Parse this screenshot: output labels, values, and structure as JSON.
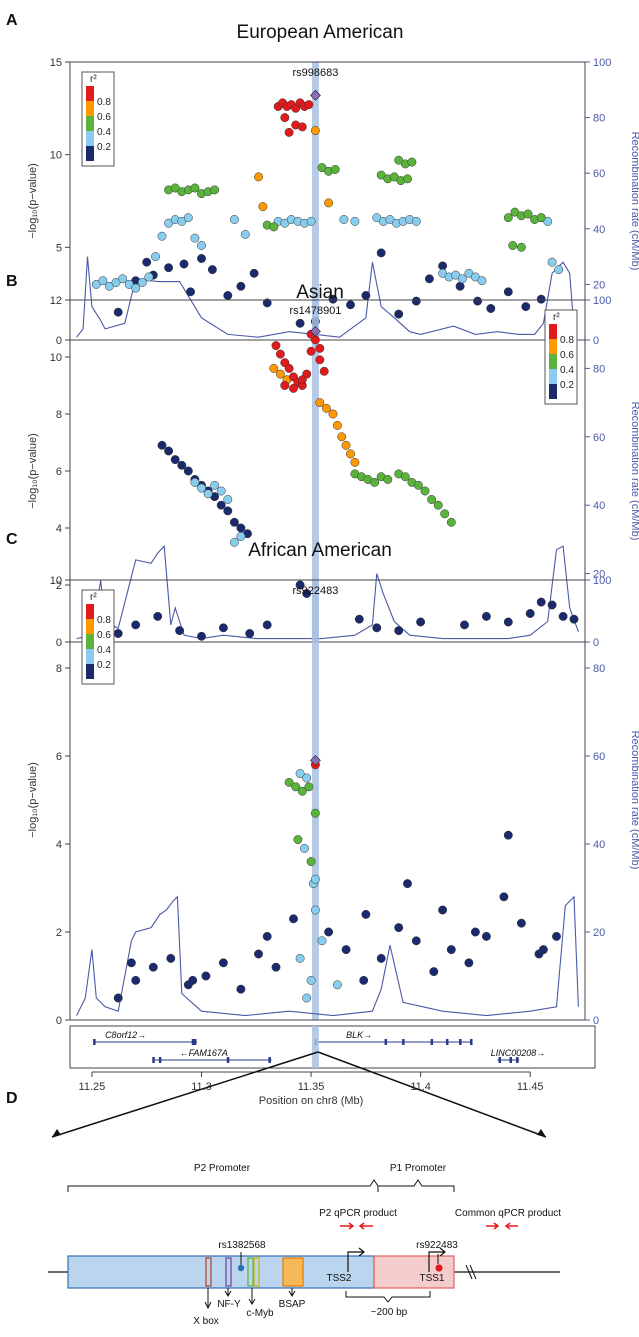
{
  "chart_data": [
    {
      "type": "scatter",
      "panel": "A",
      "title": "European American",
      "ylabel": "−log₁₀(p−value)",
      "y2label": "Recombination rate (cM/Mb)",
      "ylim": [
        0,
        15
      ],
      "yticks": [
        0,
        5,
        10,
        15
      ],
      "y2lim": [
        0,
        100
      ],
      "y2ticks": [
        0,
        20,
        40,
        60,
        80,
        100
      ],
      "xlim": [
        11.24,
        11.475
      ],
      "lead_snp": {
        "name": "rs998683",
        "x": 11.352,
        "y": 13.2
      },
      "legend": {
        "title": "r²",
        "position": "top-left",
        "entries": [
          "0.8",
          "0.6",
          "0.4",
          "0.2"
        ]
      },
      "series": [
        {
          "name": "0.8",
          "color": "#e31a1c",
          "x": [
            11.335,
            11.337,
            11.339,
            11.341,
            11.343,
            11.345,
            11.347,
            11.349,
            11.34,
            11.343,
            11.346,
            11.338
          ],
          "y": [
            12.6,
            12.8,
            12.6,
            12.7,
            12.5,
            12.8,
            12.6,
            12.7,
            11.2,
            11.6,
            11.5,
            12.0
          ]
        },
        {
          "name": "0.6",
          "color": "#ff9900",
          "x": [
            11.326,
            11.328,
            11.352,
            11.358
          ],
          "y": [
            8.8,
            7.2,
            11.3,
            7.4
          ]
        },
        {
          "name": "0.4",
          "color": "#5ab43c",
          "x": [
            11.285,
            11.288,
            11.291,
            11.294,
            11.297,
            11.3,
            11.303,
            11.306,
            11.33,
            11.333,
            11.355,
            11.358,
            11.361,
            11.382,
            11.385,
            11.388,
            11.391,
            11.394,
            11.39,
            11.393,
            11.396,
            11.44,
            11.443,
            11.446,
            11.449,
            11.452,
            11.455,
            11.442,
            11.446
          ],
          "y": [
            8.1,
            8.2,
            8.0,
            8.1,
            8.2,
            7.9,
            8.0,
            8.1,
            6.2,
            6.1,
            9.3,
            9.1,
            9.2,
            8.9,
            8.7,
            8.8,
            8.6,
            8.7,
            9.7,
            9.5,
            9.6,
            6.6,
            6.9,
            6.7,
            6.8,
            6.5,
            6.6,
            5.1,
            5.0
          ]
        },
        {
          "name": "0.2",
          "color": "#88cdee",
          "x": [
            11.252,
            11.255,
            11.258,
            11.261,
            11.264,
            11.267,
            11.27,
            11.273,
            11.276,
            11.279,
            11.282,
            11.285,
            11.288,
            11.291,
            11.294,
            11.297,
            11.3,
            11.315,
            11.32,
            11.335,
            11.338,
            11.341,
            11.344,
            11.347,
            11.35,
            11.365,
            11.37,
            11.38,
            11.383,
            11.386,
            11.389,
            11.392,
            11.395,
            11.398,
            11.41,
            11.413,
            11.416,
            11.419,
            11.422,
            11.425,
            11.428,
            11.46,
            11.463,
            11.455,
            11.458
          ],
          "y": [
            3.0,
            3.2,
            2.9,
            3.1,
            3.3,
            3.0,
            2.8,
            3.1,
            3.4,
            4.5,
            5.6,
            6.3,
            6.5,
            6.4,
            6.6,
            5.5,
            5.1,
            6.5,
            5.7,
            6.4,
            6.3,
            6.5,
            6.4,
            6.3,
            6.4,
            6.5,
            6.4,
            6.6,
            6.4,
            6.5,
            6.3,
            6.4,
            6.5,
            6.4,
            3.6,
            3.4,
            3.5,
            3.3,
            3.6,
            3.4,
            3.2,
            4.2,
            3.8,
            6.6,
            6.4
          ]
        },
        {
          "name": "< 0.2",
          "color": "#1a2a6c",
          "x": [
            11.262,
            11.27,
            11.278,
            11.285,
            11.292,
            11.3,
            11.305,
            11.312,
            11.318,
            11.324,
            11.33,
            11.36,
            11.368,
            11.375,
            11.382,
            11.39,
            11.398,
            11.404,
            11.41,
            11.418,
            11.426,
            11.432,
            11.44,
            11.448,
            11.455,
            11.462,
            11.275,
            11.295,
            11.345,
            11.352
          ],
          "y": [
            1.5,
            3.2,
            3.5,
            3.9,
            4.1,
            4.4,
            3.8,
            2.4,
            2.9,
            3.6,
            2.0,
            2.2,
            1.9,
            2.4,
            4.7,
            1.4,
            2.1,
            3.3,
            4.0,
            2.9,
            2.1,
            1.7,
            2.6,
            1.8,
            2.2,
            1.2,
            4.2,
            2.6,
            0.9,
            1.0
          ]
        }
      ],
      "recombination": {
        "x": [
          11.243,
          11.246,
          11.248,
          11.25,
          11.254,
          11.256,
          11.265,
          11.27,
          11.28,
          11.29,
          11.3,
          11.312,
          11.326,
          11.34,
          11.352,
          11.363,
          11.375,
          11.378,
          11.382,
          11.388,
          11.395,
          11.4,
          11.415,
          11.425,
          11.435,
          11.445,
          11.452,
          11.456,
          11.46,
          11.465,
          11.468,
          11.47
        ],
        "y": [
          1,
          4,
          30,
          12,
          7,
          4,
          6,
          22,
          21,
          21,
          8,
          2,
          1,
          3,
          2,
          1,
          8,
          28,
          12,
          8,
          3,
          2,
          5,
          2,
          3,
          2,
          2,
          6,
          24,
          28,
          24,
          4
        ]
      }
    },
    {
      "type": "scatter",
      "panel": "B",
      "title": "Asian",
      "ylabel": "−log₁₀(p−value)",
      "y2label": "Recombination rate (cM/Mb)",
      "ylim": [
        0,
        12
      ],
      "yticks": [
        0,
        2,
        4,
        6,
        8,
        10,
        12
      ],
      "y2lim": [
        0,
        100
      ],
      "y2ticks": [
        0,
        20,
        40,
        60,
        80,
        100
      ],
      "xlim": [
        11.24,
        11.475
      ],
      "lead_snp": {
        "name": "rs1478901",
        "x": 11.352,
        "y": 10.9
      },
      "legend": {
        "title": "r²",
        "position": "top-right",
        "entries": [
          "0.8",
          "0.6",
          "0.4",
          "0.2"
        ]
      },
      "series": [
        {
          "name": "0.8",
          "color": "#e31a1c",
          "x": [
            11.334,
            11.336,
            11.338,
            11.34,
            11.342,
            11.344,
            11.346,
            11.348,
            11.35,
            11.352,
            11.354,
            11.356,
            11.338,
            11.342,
            11.346,
            11.35,
            11.354
          ],
          "y": [
            10.4,
            10.1,
            9.8,
            9.6,
            9.3,
            9.1,
            9.0,
            9.4,
            10.2,
            10.6,
            10.3,
            9.5,
            9.0,
            8.9,
            9.2,
            10.8,
            9.9
          ]
        },
        {
          "name": "0.6",
          "color": "#ff9900",
          "x": [
            11.333,
            11.336,
            11.339,
            11.354,
            11.357,
            11.36,
            11.362,
            11.364,
            11.366,
            11.368,
            11.37
          ],
          "y": [
            9.6,
            9.4,
            9.2,
            8.4,
            8.2,
            8.0,
            7.6,
            7.2,
            6.9,
            6.6,
            6.3
          ]
        },
        {
          "name": "0.4",
          "color": "#5ab43c",
          "x": [
            11.37,
            11.373,
            11.376,
            11.379,
            11.382,
            11.385,
            11.39,
            11.393,
            11.396,
            11.399,
            11.402,
            11.405,
            11.408,
            11.411,
            11.414
          ],
          "y": [
            5.9,
            5.8,
            5.7,
            5.6,
            5.8,
            5.7,
            5.9,
            5.8,
            5.6,
            5.5,
            5.3,
            5.0,
            4.8,
            4.5,
            4.2
          ]
        },
        {
          "name": "0.2",
          "color": "#88cdee",
          "x": [
            11.297,
            11.3,
            11.303,
            11.306,
            11.309,
            11.312,
            11.315,
            11.318
          ],
          "y": [
            5.6,
            5.4,
            5.2,
            5.5,
            5.3,
            5.0,
            3.5,
            3.7
          ]
        },
        {
          "name": "< 0.2",
          "color": "#1a2a6c",
          "x": [
            11.282,
            11.285,
            11.288,
            11.291,
            11.294,
            11.297,
            11.3,
            11.303,
            11.306,
            11.309,
            11.312,
            11.315,
            11.318,
            11.321,
            11.262,
            11.27,
            11.28,
            11.29,
            11.3,
            11.31,
            11.322,
            11.33,
            11.345,
            11.348,
            11.372,
            11.38,
            11.39,
            11.4,
            11.42,
            11.43,
            11.44,
            11.45,
            11.455,
            11.46,
            11.465,
            11.47
          ],
          "y": [
            6.9,
            6.7,
            6.4,
            6.2,
            6.0,
            5.7,
            5.5,
            5.3,
            5.1,
            4.8,
            4.6,
            4.2,
            4.0,
            3.8,
            0.3,
            0.6,
            0.9,
            0.4,
            0.2,
            0.5,
            0.3,
            0.6,
            2.0,
            1.7,
            0.8,
            0.5,
            0.4,
            0.7,
            0.6,
            0.9,
            0.7,
            1.0,
            1.4,
            1.3,
            0.9,
            0.8
          ]
        }
      ],
      "recombination": {
        "x": [
          11.243,
          11.25,
          11.254,
          11.256,
          11.262,
          11.27,
          11.277,
          11.28,
          11.283,
          11.286,
          11.288,
          11.292,
          11.3,
          11.31,
          11.325,
          11.34,
          11.355,
          11.37,
          11.378,
          11.38,
          11.383,
          11.388,
          11.395,
          11.41,
          11.425,
          11.44,
          11.45,
          11.458,
          11.462,
          11.465,
          11.468,
          11.472
        ],
        "y": [
          1,
          2,
          18,
          6,
          4,
          24,
          23,
          26,
          28,
          5,
          10,
          2,
          1,
          2,
          1,
          1,
          1,
          2,
          5,
          20,
          14,
          6,
          2,
          1,
          1,
          1,
          2,
          6,
          27,
          28,
          10,
          3
        ]
      }
    },
    {
      "type": "scatter",
      "panel": "C",
      "title": "African American",
      "ylabel": "−log₁₀(p−value)",
      "y2label": "Recombination rate (cM/Mb)",
      "xlabel": "Position on chr8 (Mb)",
      "ylim": [
        0,
        10
      ],
      "yticks": [
        0,
        2,
        4,
        6,
        8,
        10
      ],
      "y2lim": [
        0,
        100
      ],
      "y2ticks": [
        0,
        20,
        40,
        60,
        80,
        100
      ],
      "xlim": [
        11.24,
        11.475
      ],
      "xticks": [
        11.25,
        11.3,
        11.35,
        11.4,
        11.45
      ],
      "xticklabels": [
        "11.25",
        "11.3",
        "11.35",
        "11.4",
        "11.45"
      ],
      "lead_snp": {
        "name": "rs922483",
        "x": 11.352,
        "y": 5.9
      },
      "legend": {
        "title": "r²",
        "position": "top-left",
        "entries": [
          "0.8",
          "0.6",
          "0.4",
          "0.2"
        ]
      },
      "series": [
        {
          "name": "0.8",
          "color": "#e31a1c",
          "x": [
            11.352
          ],
          "y": [
            5.8
          ]
        },
        {
          "name": "0.6",
          "color": "#ff9900",
          "x": [],
          "y": []
        },
        {
          "name": "0.4",
          "color": "#5ab43c",
          "x": [
            11.34,
            11.343,
            11.346,
            11.349,
            11.352,
            11.35,
            11.344
          ],
          "y": [
            5.4,
            5.3,
            5.2,
            5.3,
            4.7,
            3.6,
            4.1
          ]
        },
        {
          "name": "0.2",
          "color": "#88cdee",
          "x": [
            11.345,
            11.348,
            11.351,
            11.347,
            11.352,
            11.345,
            11.35,
            11.355,
            11.352,
            11.362,
            11.348
          ],
          "y": [
            5.6,
            5.5,
            3.1,
            3.9,
            2.5,
            1.4,
            0.9,
            1.8,
            3.2,
            0.8,
            0.5
          ]
        },
        {
          "name": "< 0.2",
          "color": "#1a2a6c",
          "x": [
            11.262,
            11.27,
            11.278,
            11.286,
            11.294,
            11.302,
            11.31,
            11.318,
            11.326,
            11.334,
            11.342,
            11.358,
            11.366,
            11.374,
            11.382,
            11.39,
            11.398,
            11.406,
            11.414,
            11.422,
            11.43,
            11.438,
            11.446,
            11.454,
            11.462,
            11.268,
            11.296,
            11.33,
            11.375,
            11.394,
            11.41,
            11.425,
            11.44,
            11.456
          ],
          "y": [
            0.5,
            0.9,
            1.2,
            1.4,
            0.8,
            1.0,
            1.3,
            0.7,
            1.5,
            1.2,
            2.3,
            2.0,
            1.6,
            0.9,
            1.4,
            2.1,
            1.8,
            1.1,
            1.6,
            1.3,
            1.9,
            2.8,
            2.2,
            1.5,
            1.9,
            1.3,
            0.9,
            1.9,
            2.4,
            3.1,
            2.5,
            2.0,
            4.2,
            1.6
          ]
        }
      ],
      "recombination": {
        "x": [
          11.243,
          11.247,
          11.25,
          11.252,
          11.256,
          11.262,
          11.268,
          11.27,
          11.277,
          11.281,
          11.284,
          11.287,
          11.289,
          11.291,
          11.3,
          11.32,
          11.34,
          11.36,
          11.378,
          11.382,
          11.386,
          11.392,
          11.41,
          11.43,
          11.45,
          11.462,
          11.466,
          11.47,
          11.472
        ],
        "y": [
          1,
          5,
          16,
          5,
          3,
          2,
          18,
          20,
          21,
          24,
          25,
          27,
          28,
          6,
          2,
          1,
          2,
          1,
          2,
          7,
          17,
          4,
          2,
          1,
          2,
          3,
          26,
          28,
          3
        ]
      }
    }
  ],
  "panels": {
    "A": {
      "label": "A"
    },
    "B": {
      "label": "B"
    },
    "C": {
      "label": "C"
    },
    "D": {
      "label": "D"
    }
  },
  "genes": [
    {
      "name": "C8orf12→",
      "x": 11.256
    },
    {
      "name": "BLK→",
      "x": 11.366
    },
    {
      "name": "←FAM167A",
      "x": 11.29
    },
    {
      "name": "LINC00208→",
      "x": 11.432
    }
  ],
  "promoter_diagram": {
    "p2_promoter": "P2 Promoter",
    "p1_promoter": "P1 Promoter",
    "p2_qpcr": "P2 qPCR product",
    "common_qpcr": "Common qPCR product",
    "snp1": "rs1382568",
    "snp2": "rs922483",
    "tss2": "TSS2",
    "tss1": "TSS1",
    "xbox": "X box",
    "nfy": "NF-Y",
    "cmyb": "c-Myb",
    "bsap": "BSAP",
    "distance": "~200 bp"
  },
  "colors": {
    "r08": "#e31a1c",
    "r06": "#ff9900",
    "r04": "#5ab43c",
    "r02": "#88cdee",
    "r00": "#1a2a6c",
    "lead": "#8a6fb6",
    "recomb": "#4a5aa8",
    "highlight": "#a9c1e2"
  }
}
